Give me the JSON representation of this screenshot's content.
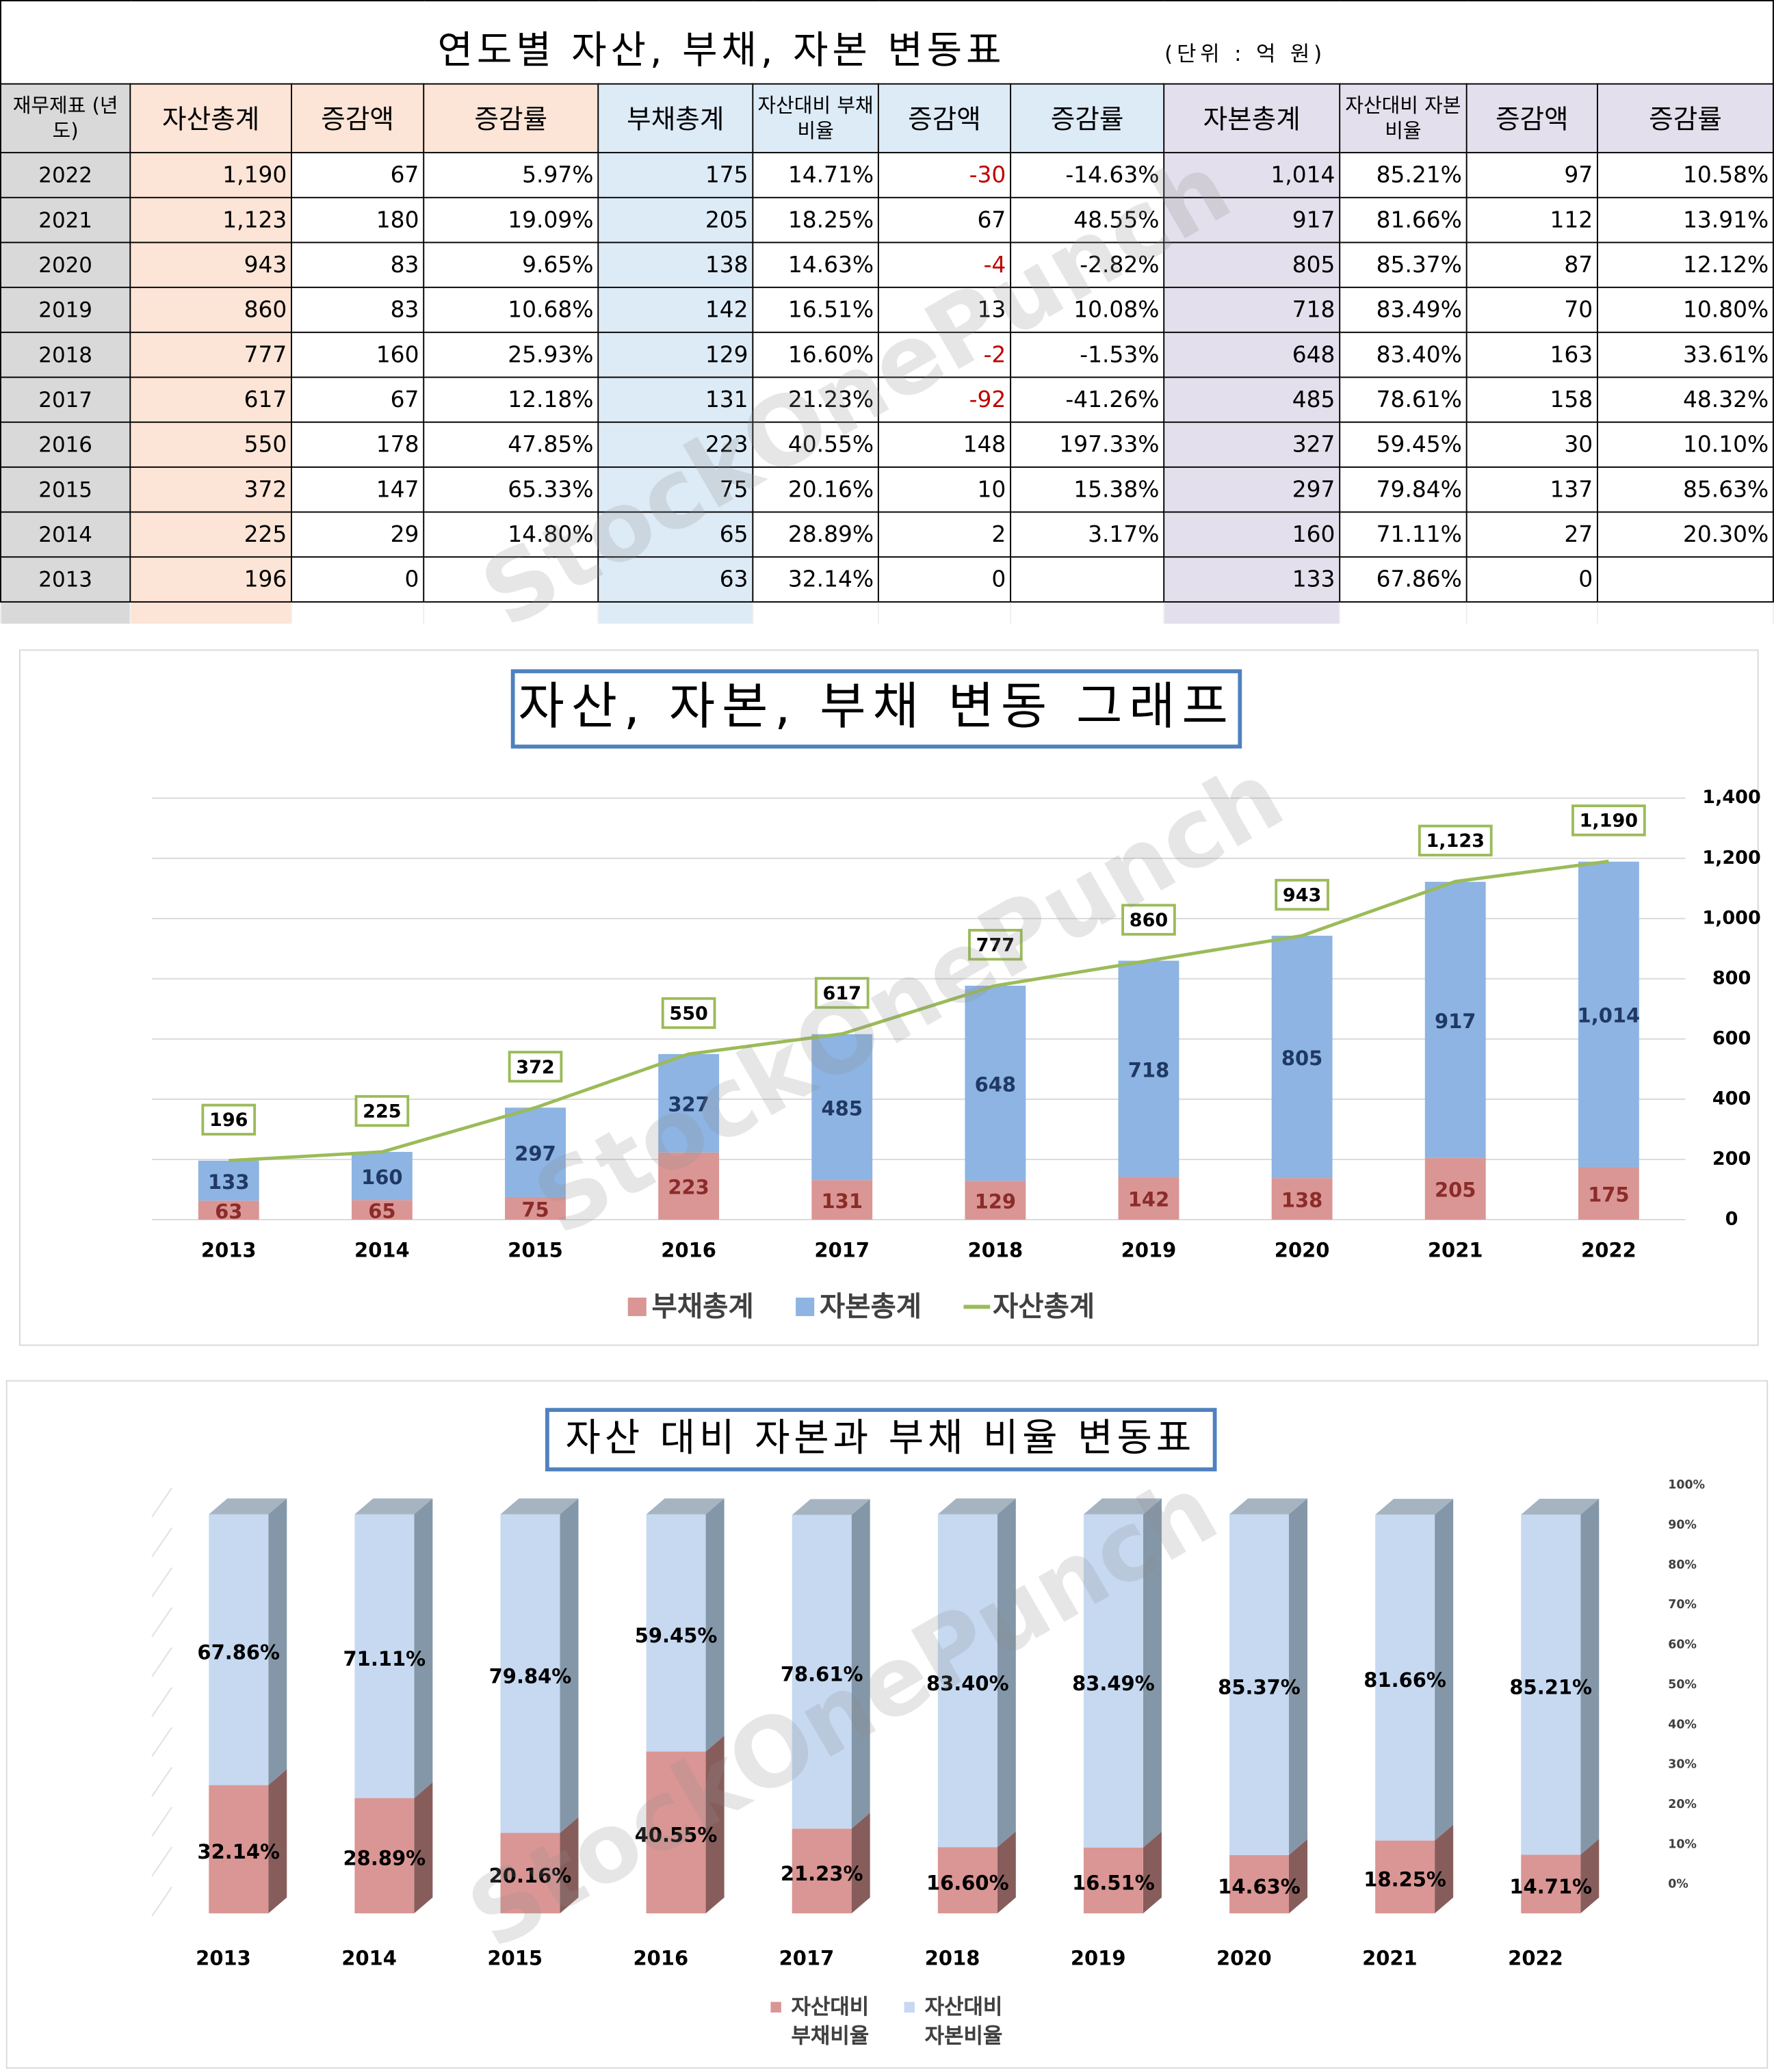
{
  "table": {
    "title": "연도별 자산, 부채, 자본 변동표",
    "unit": "(단위 : 억 원)",
    "header": [
      "재무제표 (년도)",
      "자산총계",
      "증감액",
      "증감률",
      "부채총계",
      "자산대비 부채비율",
      "증감액",
      "증감률",
      "자본총계",
      "자산대비 자본비율",
      "증감액",
      "증감률"
    ],
    "rows": [
      [
        "2022",
        "1,190",
        "67",
        "5.97%",
        "175",
        "14.71%",
        "-30",
        "-14.63%",
        "1,014",
        "85.21%",
        "97",
        "10.58%"
      ],
      [
        "2021",
        "1,123",
        "180",
        "19.09%",
        "205",
        "18.25%",
        "67",
        "48.55%",
        "917",
        "81.66%",
        "112",
        "13.91%"
      ],
      [
        "2020",
        "943",
        "83",
        "9.65%",
        "138",
        "14.63%",
        "-4",
        "-2.82%",
        "805",
        "85.37%",
        "87",
        "12.12%"
      ],
      [
        "2019",
        "860",
        "83",
        "10.68%",
        "142",
        "16.51%",
        "13",
        "10.08%",
        "718",
        "83.49%",
        "70",
        "10.80%"
      ],
      [
        "2018",
        "777",
        "160",
        "25.93%",
        "129",
        "16.60%",
        "-2",
        "-1.53%",
        "648",
        "83.40%",
        "163",
        "33.61%"
      ],
      [
        "2017",
        "617",
        "67",
        "12.18%",
        "131",
        "21.23%",
        "-92",
        "-41.26%",
        "485",
        "78.61%",
        "158",
        "48.32%"
      ],
      [
        "2016",
        "550",
        "178",
        "47.85%",
        "223",
        "40.55%",
        "148",
        "197.33%",
        "327",
        "59.45%",
        "30",
        "10.10%"
      ],
      [
        "2015",
        "372",
        "147",
        "65.33%",
        "75",
        "20.16%",
        "10",
        "15.38%",
        "297",
        "79.84%",
        "137",
        "85.63%"
      ],
      [
        "2014",
        "225",
        "29",
        "14.80%",
        "65",
        "28.89%",
        "2",
        "3.17%",
        "160",
        "71.11%",
        "27",
        "20.30%"
      ],
      [
        "2013",
        "196",
        "0",
        null,
        "63",
        "32.14%",
        "0",
        null,
        "133",
        "67.86%",
        "0",
        null
      ]
    ]
  },
  "watermark": "StockOnePunch",
  "chart_data": [
    {
      "type": "bar",
      "title": "자산, 자본, 부채 변동 그래프",
      "stacked": true,
      "categories": [
        "2013",
        "2014",
        "2015",
        "2016",
        "2017",
        "2018",
        "2019",
        "2020",
        "2021",
        "2022"
      ],
      "series": [
        {
          "name": "부채총계",
          "color": "#da9694",
          "values": [
            63,
            65,
            75,
            223,
            131,
            129,
            142,
            138,
            205,
            175
          ]
        },
        {
          "name": "자본총계",
          "color": "#8db4e2",
          "values": [
            133,
            160,
            297,
            327,
            485,
            648,
            718,
            805,
            917,
            1014
          ],
          "value_labels": [
            "133",
            "160",
            "297",
            "327",
            "485",
            "648",
            "718",
            "805",
            "917",
            "1,014"
          ]
        },
        {
          "name": "자산총계",
          "type": "line",
          "color": "#9bbb59",
          "values": [
            196,
            225,
            372,
            550,
            617,
            777,
            860,
            943,
            1123,
            1190
          ],
          "value_labels": [
            "196",
            "225",
            "372",
            "550",
            "617",
            "777",
            "860",
            "943",
            "1,123",
            "1,190"
          ]
        }
      ],
      "ylim": [
        0,
        1400
      ],
      "yticks": [
        0,
        200,
        400,
        600,
        800,
        {
          "value": 1000,
          "label": "1,000"
        },
        {
          "value": 1200,
          "label": "1,200"
        },
        {
          "value": 1400,
          "label": "1,400"
        }
      ],
      "grid": true,
      "legend": "bottom"
    },
    {
      "type": "bar3d",
      "title": "자산 대비 자본과 부채 비율 변동표",
      "stacked": true,
      "categories": [
        "2013",
        "2014",
        "2015",
        "2016",
        "2017",
        "2018",
        "2019",
        "2020",
        "2021",
        "2022"
      ],
      "series": [
        {
          "name": "자산대비 부채비율",
          "color": "#da9694",
          "values": [
            32.14,
            28.89,
            20.16,
            40.55,
            21.23,
            16.6,
            16.51,
            14.63,
            18.25,
            14.71
          ],
          "value_labels": [
            "32.14%",
            "28.89%",
            "20.16%",
            "40.55%",
            "21.23%",
            "16.60%",
            "16.51%",
            "14.63%",
            "18.25%",
            "14.71%"
          ]
        },
        {
          "name": "자산대비 자본비율",
          "color": "#c6d9f1",
          "values": [
            67.86,
            71.11,
            79.84,
            59.45,
            78.61,
            83.4,
            83.49,
            85.37,
            81.66,
            85.21
          ],
          "value_labels": [
            "67.86%",
            "71.11%",
            "79.84%",
            "59.45%",
            "78.61%",
            "83.40%",
            "83.49%",
            "85.37%",
            "81.66%",
            "85.21%"
          ]
        }
      ],
      "ylim": [
        0,
        100
      ],
      "yticks": [
        {
          "value": 0,
          "label": "0%"
        },
        {
          "value": 10,
          "label": "10%"
        },
        {
          "value": 20,
          "label": "20%"
        },
        {
          "value": 30,
          "label": "30%"
        },
        {
          "value": 40,
          "label": "40%"
        },
        {
          "value": 50,
          "label": "50%"
        },
        {
          "value": 60,
          "label": "60%"
        },
        {
          "value": 70,
          "label": "70%"
        },
        {
          "value": 80,
          "label": "80%"
        },
        {
          "value": 90,
          "label": "90%"
        },
        {
          "value": 100,
          "label": "100%"
        }
      ],
      "grid": true,
      "legend": "bottom"
    }
  ]
}
